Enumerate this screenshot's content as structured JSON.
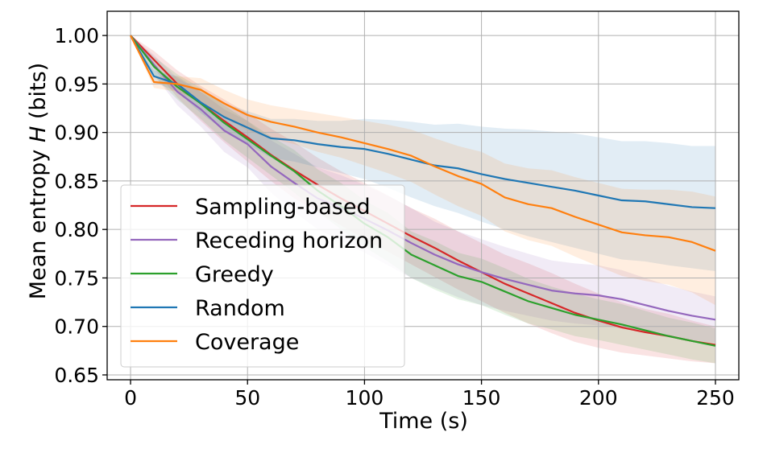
{
  "chart_data": {
    "type": "line",
    "title": "",
    "xlabel": "Time (s)",
    "ylabel": {
      "prefix": "Mean entropy ",
      "symbol": "H",
      "suffix": " (bits)"
    },
    "xlim": [
      -10,
      260
    ],
    "ylim": [
      0.645,
      1.025
    ],
    "xticks": [
      0,
      50,
      100,
      150,
      200,
      250
    ],
    "xtick_labels": [
      "0",
      "50",
      "100",
      "150",
      "200",
      "250"
    ],
    "yticks": [
      0.65,
      0.7,
      0.75,
      0.8,
      0.85,
      0.9,
      0.95,
      1.0
    ],
    "ytick_labels": [
      "0.65",
      "0.70",
      "0.75",
      "0.80",
      "0.85",
      "0.90",
      "0.95",
      "1.00"
    ],
    "grid": true,
    "legend_position": "lower-left",
    "x": [
      0,
      10,
      20,
      30,
      40,
      50,
      60,
      70,
      80,
      90,
      100,
      110,
      120,
      130,
      140,
      150,
      160,
      170,
      180,
      190,
      200,
      210,
      220,
      230,
      240,
      250
    ],
    "series": [
      {
        "name": "Sampling-based",
        "color": "#d62728",
        "values": [
          1.0,
          0.975,
          0.95,
          0.93,
          0.912,
          0.895,
          0.877,
          0.861,
          0.846,
          0.832,
          0.819,
          0.806,
          0.793,
          0.781,
          0.768,
          0.756,
          0.744,
          0.734,
          0.724,
          0.714,
          0.706,
          0.699,
          0.694,
          0.69,
          0.685,
          0.681
        ],
        "lower": [
          1.0,
          0.966,
          0.936,
          0.912,
          0.89,
          0.87,
          0.85,
          0.832,
          0.818,
          0.804,
          0.79,
          0.777,
          0.764,
          0.751,
          0.738,
          0.726,
          0.714,
          0.703,
          0.693,
          0.684,
          0.678,
          0.673,
          0.67,
          0.667,
          0.664,
          0.662
        ],
        "upper": [
          1.0,
          0.984,
          0.964,
          0.948,
          0.934,
          0.92,
          0.904,
          0.89,
          0.874,
          0.86,
          0.848,
          0.835,
          0.822,
          0.811,
          0.798,
          0.786,
          0.774,
          0.765,
          0.755,
          0.744,
          0.734,
          0.725,
          0.718,
          0.713,
          0.706,
          0.7
        ]
      },
      {
        "name": "Receding horizon",
        "color": "#9467bd",
        "values": [
          1.0,
          0.97,
          0.942,
          0.924,
          0.902,
          0.888,
          0.865,
          0.848,
          0.832,
          0.822,
          0.811,
          0.799,
          0.786,
          0.774,
          0.764,
          0.756,
          0.749,
          0.743,
          0.737,
          0.734,
          0.732,
          0.728,
          0.722,
          0.716,
          0.711,
          0.707
        ],
        "lower": [
          1.0,
          0.96,
          0.928,
          0.906,
          0.88,
          0.864,
          0.838,
          0.818,
          0.8,
          0.788,
          0.776,
          0.763,
          0.75,
          0.74,
          0.73,
          0.722,
          0.716,
          0.711,
          0.706,
          0.703,
          0.701,
          0.698,
          0.694,
          0.69,
          0.686,
          0.683
        ],
        "upper": [
          1.0,
          0.98,
          0.956,
          0.942,
          0.924,
          0.912,
          0.892,
          0.878,
          0.864,
          0.856,
          0.846,
          0.835,
          0.822,
          0.808,
          0.798,
          0.79,
          0.782,
          0.775,
          0.768,
          0.765,
          0.763,
          0.758,
          0.75,
          0.742,
          0.736,
          0.731
        ]
      },
      {
        "name": "Greedy",
        "color": "#2ca02c",
        "values": [
          1.0,
          0.968,
          0.947,
          0.93,
          0.91,
          0.893,
          0.876,
          0.86,
          0.84,
          0.824,
          0.806,
          0.792,
          0.774,
          0.763,
          0.752,
          0.746,
          0.736,
          0.726,
          0.719,
          0.712,
          0.707,
          0.702,
          0.696,
          0.69,
          0.685,
          0.68
        ],
        "lower": [
          1.0,
          0.958,
          0.934,
          0.914,
          0.892,
          0.874,
          0.856,
          0.838,
          0.818,
          0.8,
          0.782,
          0.767,
          0.75,
          0.738,
          0.728,
          0.722,
          0.712,
          0.703,
          0.697,
          0.69,
          0.686,
          0.681,
          0.676,
          0.671,
          0.666,
          0.662
        ],
        "upper": [
          1.0,
          0.978,
          0.96,
          0.946,
          0.928,
          0.912,
          0.896,
          0.882,
          0.862,
          0.848,
          0.83,
          0.817,
          0.798,
          0.788,
          0.776,
          0.77,
          0.76,
          0.749,
          0.741,
          0.734,
          0.728,
          0.723,
          0.716,
          0.709,
          0.704,
          0.698
        ]
      },
      {
        "name": "Random",
        "color": "#1f77b4",
        "values": [
          1.0,
          0.958,
          0.95,
          0.931,
          0.916,
          0.905,
          0.894,
          0.892,
          0.888,
          0.885,
          0.883,
          0.878,
          0.872,
          0.866,
          0.863,
          0.857,
          0.852,
          0.848,
          0.844,
          0.84,
          0.835,
          0.83,
          0.829,
          0.826,
          0.823,
          0.822
        ],
        "lower": [
          1.0,
          0.952,
          0.942,
          0.92,
          0.902,
          0.888,
          0.874,
          0.87,
          0.864,
          0.858,
          0.852,
          0.843,
          0.833,
          0.824,
          0.817,
          0.808,
          0.8,
          0.793,
          0.787,
          0.781,
          0.775,
          0.769,
          0.767,
          0.763,
          0.76,
          0.757
        ],
        "upper": [
          1.0,
          0.964,
          0.958,
          0.942,
          0.93,
          0.922,
          0.914,
          0.914,
          0.912,
          0.912,
          0.914,
          0.913,
          0.911,
          0.908,
          0.909,
          0.906,
          0.904,
          0.903,
          0.901,
          0.899,
          0.895,
          0.891,
          0.891,
          0.889,
          0.886,
          0.886
        ]
      },
      {
        "name": "Coverage",
        "color": "#ff7f0e",
        "values": [
          1.0,
          0.952,
          0.95,
          0.944,
          0.93,
          0.918,
          0.911,
          0.906,
          0.9,
          0.895,
          0.889,
          0.883,
          0.876,
          0.865,
          0.855,
          0.847,
          0.833,
          0.826,
          0.822,
          0.813,
          0.805,
          0.797,
          0.794,
          0.792,
          0.787,
          0.778
        ],
        "lower": [
          1.0,
          0.946,
          0.942,
          0.932,
          0.916,
          0.902,
          0.894,
          0.888,
          0.88,
          0.874,
          0.866,
          0.858,
          0.849,
          0.836,
          0.824,
          0.814,
          0.798,
          0.789,
          0.783,
          0.772,
          0.762,
          0.752,
          0.747,
          0.743,
          0.735,
          0.722
        ],
        "upper": [
          1.0,
          0.958,
          0.958,
          0.956,
          0.944,
          0.934,
          0.928,
          0.924,
          0.92,
          0.916,
          0.912,
          0.908,
          0.903,
          0.894,
          0.886,
          0.88,
          0.868,
          0.863,
          0.861,
          0.854,
          0.848,
          0.842,
          0.841,
          0.841,
          0.839,
          0.834
        ]
      }
    ]
  }
}
